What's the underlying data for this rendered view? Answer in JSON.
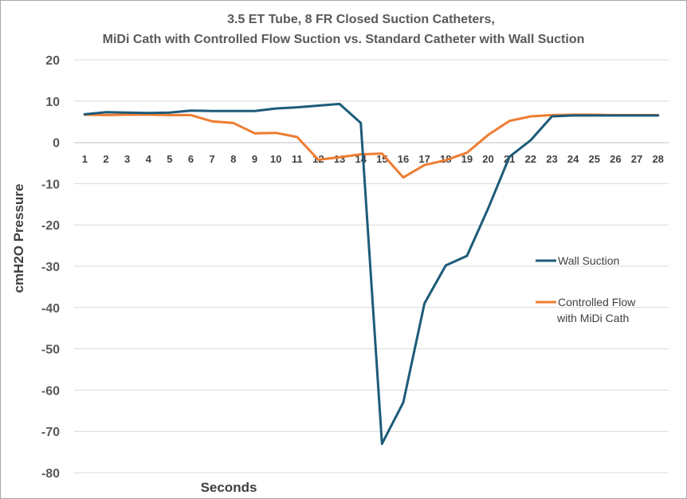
{
  "chart_data": {
    "type": "line",
    "title_lines": [
      "3.5 ET Tube,  8 FR Closed Suction Catheters,",
      "MiDi Cath with Controlled Flow Suction   vs. Standard Catheter with Wall Suction"
    ],
    "xlabel": "Seconds",
    "ylabel": "cmH2O Pressure",
    "ylim": [
      -80,
      20
    ],
    "yticks": [
      20,
      10,
      0,
      -10,
      -20,
      -30,
      -40,
      -50,
      -60,
      -70,
      -80
    ],
    "categories": [
      "1",
      "2",
      "3",
      "4",
      "5",
      "6",
      "7",
      "8",
      "9",
      "10",
      "11",
      "12",
      "13",
      "14",
      "15",
      "16",
      "17",
      "18",
      "19",
      "20",
      "21",
      "22",
      "23",
      "24",
      "25",
      "26",
      "27",
      "28"
    ],
    "grid": true,
    "series": [
      {
        "name": "Wall Suction",
        "color": "#1d5b79",
        "values": [
          6.8,
          7.3,
          7.2,
          7.1,
          7.2,
          7.7,
          7.6,
          7.6,
          7.6,
          8.2,
          8.5,
          8.9,
          9.3,
          4.7,
          -73,
          -63,
          -39,
          -29.8,
          -27.5,
          -16,
          -3.5,
          0.5,
          6.3,
          6.5,
          6.5,
          6.5,
          6.5,
          6.5
        ]
      },
      {
        "name": "Controlled Flow",
        "name_line2": "with MiDi Cath",
        "color": "#ed7d31",
        "values": [
          6.7,
          6.6,
          6.7,
          6.7,
          6.6,
          6.6,
          5.1,
          4.7,
          2.2,
          2.3,
          1.3,
          -4.2,
          -3.6,
          -2.9,
          -2.7,
          -8.5,
          -5.5,
          -4.3,
          -2.5,
          1.8,
          5.2,
          6.3,
          6.6,
          6.7,
          6.7,
          6.6,
          6.6,
          6.6
        ]
      }
    ],
    "legend_position": "right"
  }
}
